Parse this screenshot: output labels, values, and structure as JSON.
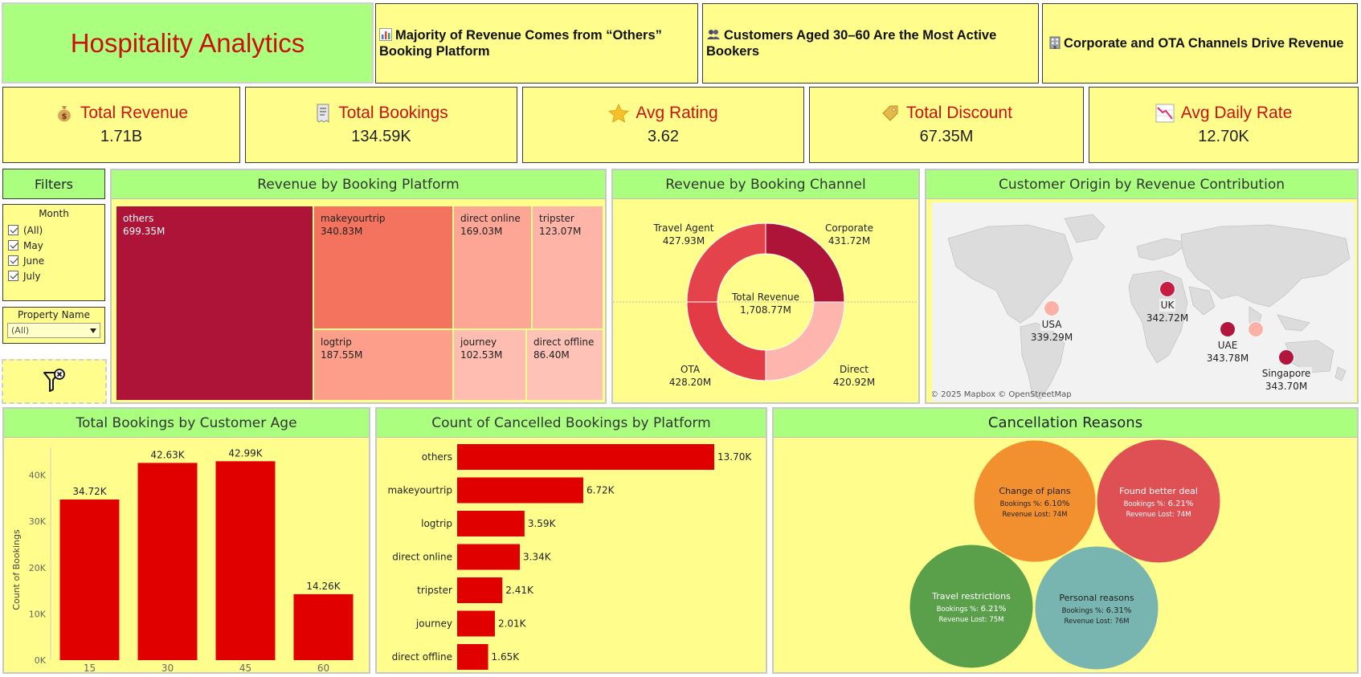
{
  "header": {
    "title": "Hospitality Analytics",
    "insights": [
      {
        "icon": "bar-chart-icon",
        "text": "Majority of Revenue Comes from “Others” Booking Platform"
      },
      {
        "icon": "people-icon",
        "text": "Customers Aged 30–60 Are the Most Active Bookers"
      },
      {
        "icon": "building-icon",
        "text": "Corporate and OTA Channels Drive Revenue"
      }
    ]
  },
  "kpis": [
    {
      "icon": "money-bag-icon",
      "label": "Total Revenue",
      "value": "1.71B"
    },
    {
      "icon": "receipt-icon",
      "label": "Total Bookings",
      "value": "134.59K"
    },
    {
      "icon": "star-icon",
      "label": "Avg Rating",
      "value": "3.62"
    },
    {
      "icon": "tag-icon",
      "label": "Total Discount",
      "value": "67.35M"
    },
    {
      "icon": "chart-decreasing-icon",
      "label": "Avg Daily Rate",
      "value": "12.70K"
    }
  ],
  "filters": {
    "title": "Filters",
    "month": {
      "label": "Month",
      "options": [
        "(All)",
        "May",
        "June",
        "July"
      ],
      "checked": [
        true,
        true,
        true,
        true
      ]
    },
    "property": {
      "label": "Property Name",
      "value": "(All)"
    },
    "clear_icon": "clear-filter-icon"
  },
  "treemap": {
    "title": "Revenue by Booking Platform",
    "cells": [
      {
        "name": "others",
        "value": "699.35M",
        "color": "#ad1438",
        "text_color": "#ffffff"
      },
      {
        "name": "makeyourtrip",
        "value": "340.83M",
        "color": "#f4735f",
        "text_color": "#222222"
      },
      {
        "name": "direct online",
        "value": "169.03M",
        "color": "#fea695",
        "text_color": "#222222"
      },
      {
        "name": "tripster",
        "value": "123.07M",
        "color": "#feb5a8",
        "text_color": "#222222"
      },
      {
        "name": "logtrip",
        "value": "187.55M",
        "color": "#fd9e8b",
        "text_color": "#222222"
      },
      {
        "name": "journey",
        "value": "102.53M",
        "color": "#ffbcb0",
        "text_color": "#222222"
      },
      {
        "name": "direct offline",
        "value": "86.40M",
        "color": "#ffc2b7",
        "text_color": "#222222"
      }
    ]
  },
  "donut": {
    "title": "Revenue by Booking Channel",
    "center_label": "Total Revenue",
    "center_value": "1,708.77M",
    "segments": [
      {
        "name": "Corporate",
        "value": "431.72M",
        "color": "#ad1438"
      },
      {
        "name": "Direct",
        "value": "420.92M",
        "color": "#feb5ae"
      },
      {
        "name": "OTA",
        "value": "428.20M",
        "color": "#e23b46"
      },
      {
        "name": "Travel Agent",
        "value": "427.93M",
        "color": "#e5434b"
      }
    ]
  },
  "map": {
    "title": "Customer Origin by Revenue Contribution",
    "attribution": "© 2025 Mapbox © OpenStreetMap",
    "points": [
      {
        "name": "USA",
        "value": "339.29M",
        "color": "#fdb0a6"
      },
      {
        "name": "UK",
        "value": "342.72M",
        "color": "#c81d43"
      },
      {
        "name": "UAE",
        "value": "343.78M",
        "color": "#b3163c"
      },
      {
        "name": "",
        "value": "",
        "color": "#fdb0a6"
      },
      {
        "name": "Singapore",
        "value": "343.70M",
        "color": "#b3163c"
      }
    ]
  },
  "chart_data": [
    {
      "type": "bar",
      "title": "Total Bookings by Customer Age",
      "categories": [
        "15",
        "30",
        "45",
        "60"
      ],
      "values": [
        34.72,
        42.63,
        42.99,
        14.26
      ],
      "labels": [
        "34.72K",
        "42.63K",
        "42.99K",
        "14.26K"
      ],
      "ylabel": "Count of Bookings",
      "yticks": [
        "0K",
        "10K",
        "20K",
        "30K",
        "40K"
      ],
      "ylim": [
        0,
        46
      ],
      "color": "#e00000"
    },
    {
      "type": "bar",
      "orientation": "horizontal",
      "title": "Count of Cancelled Bookings by Platform",
      "categories": [
        "others",
        "makeyourtrip",
        "logtrip",
        "direct online",
        "tripster",
        "journey",
        "direct offline"
      ],
      "values": [
        13.7,
        6.72,
        3.59,
        3.34,
        2.41,
        2.01,
        1.65
      ],
      "labels": [
        "13.70K",
        "6.72K",
        "3.59K",
        "3.34K",
        "2.41K",
        "2.01K",
        "1.65K"
      ],
      "color": "#e00000"
    },
    {
      "type": "bubble",
      "title": "Cancellation Reasons",
      "bubbles": [
        {
          "name": "Change of plans",
          "bookings_label": "Bookings %:",
          "bookings_pct": "6.10%",
          "revenue_label": "Revenue Lost:",
          "revenue_lost": "74M",
          "color": "#f28f2e",
          "text_color": "#222222"
        },
        {
          "name": "Found better deal",
          "bookings_label": "Bookings %:",
          "bookings_pct": "6.21%",
          "revenue_label": "Revenue Lost:",
          "revenue_lost": "74M",
          "color": "#df5055",
          "text_color": "#ffffff"
        },
        {
          "name": "Travel restrictions",
          "bookings_label": "Bookings %:",
          "bookings_pct": "6.21%",
          "revenue_label": "Revenue Lost:",
          "revenue_lost": "75M",
          "color": "#5aa04b",
          "text_color": "#ffffff"
        },
        {
          "name": "Personal reasons",
          "bookings_label": "Bookings %:",
          "bookings_pct": "6.31%",
          "revenue_label": "Revenue Lost:",
          "revenue_lost": "76M",
          "color": "#78b5b0",
          "text_color": "#222222"
        }
      ]
    }
  ]
}
